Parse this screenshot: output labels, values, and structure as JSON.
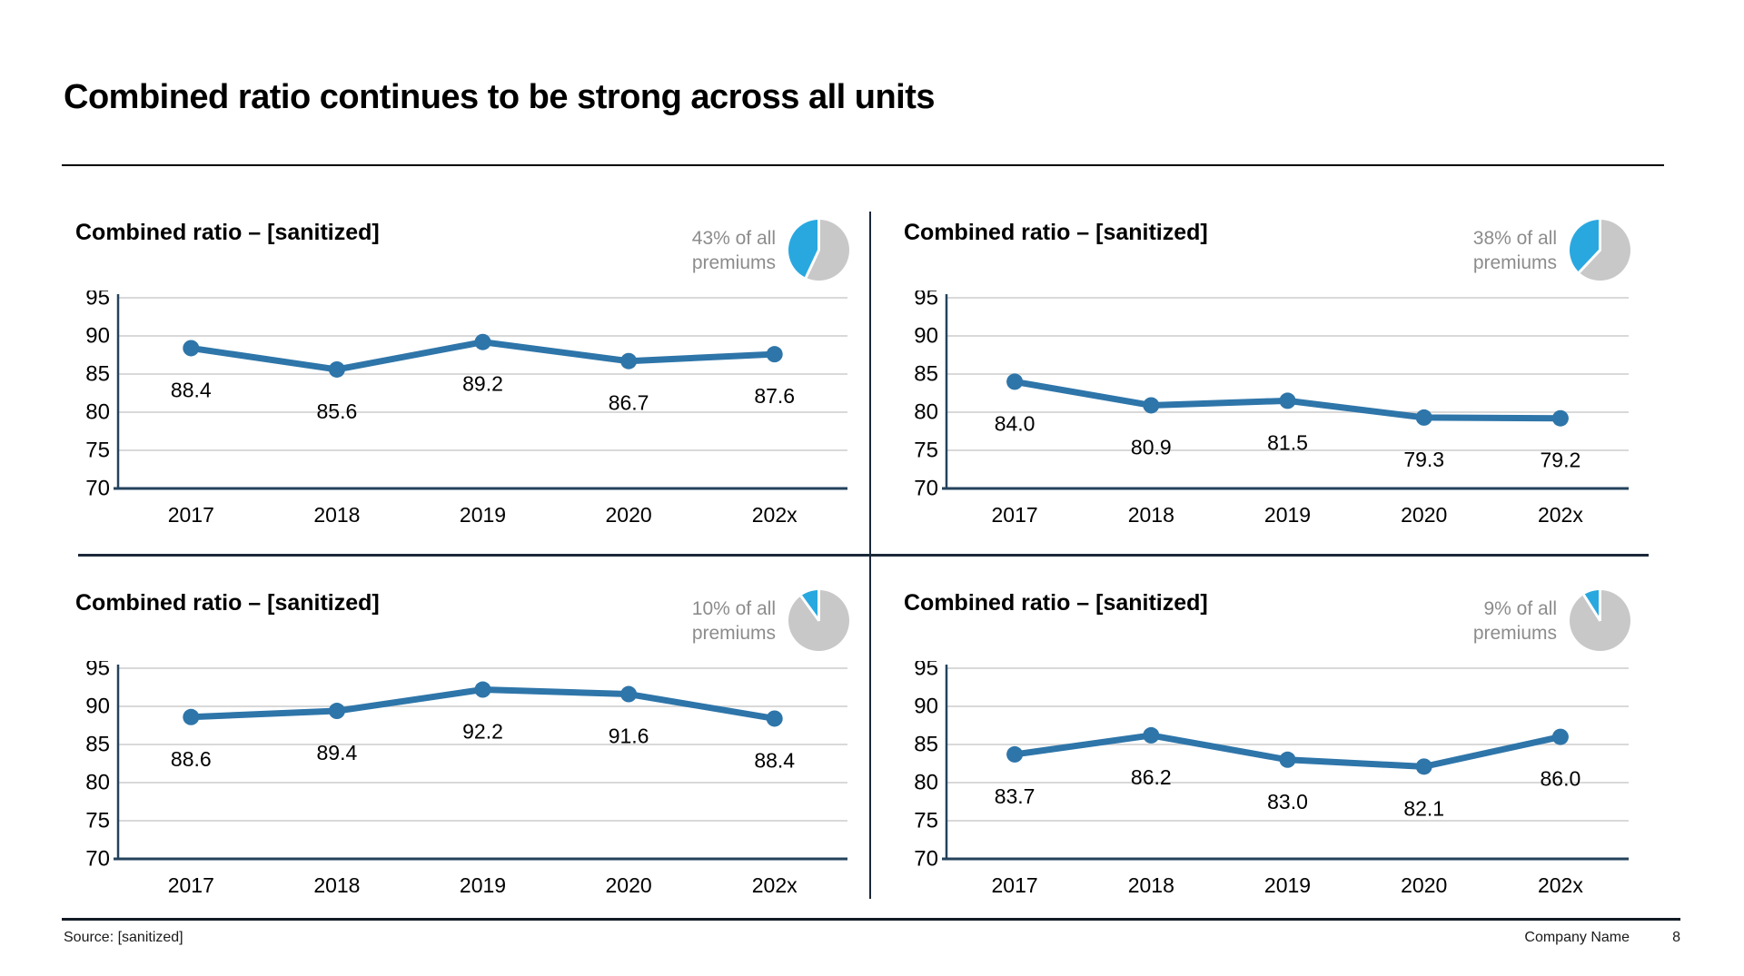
{
  "title": "Combined ratio continues to be strong across all units",
  "footer": {
    "source": "Source: [sanitized]",
    "company": "Company Name",
    "page": "8"
  },
  "colors": {
    "line": "#2E75A9",
    "pie_blue": "#29A8E0",
    "pie_gray": "#C8C8C8",
    "gridline": "#D9D9D9",
    "axis": "#24425C",
    "divider": "#1B2838",
    "caption_gray": "#8C8C8C"
  },
  "chart_data": [
    {
      "type": "line",
      "position": "top-left",
      "title": "Combined ratio – [sanitized]",
      "share_pct": 43,
      "share_caption": {
        "line1": "43% of all",
        "line2": "premiums"
      },
      "categories": [
        "2017",
        "2018",
        "2019",
        "2020",
        "202x"
      ],
      "values": [
        88.4,
        85.6,
        89.2,
        86.7,
        87.6
      ],
      "labels": [
        "88.4",
        "85.6",
        "89.2",
        "86.7",
        "87.6"
      ],
      "ylim": [
        70,
        95
      ],
      "ytick_step": 5,
      "grid": true,
      "legend": "none"
    },
    {
      "type": "line",
      "position": "top-right",
      "title": "Combined ratio – [sanitized]",
      "share_pct": 38,
      "share_caption": {
        "line1": "38% of all",
        "line2": "premiums"
      },
      "categories": [
        "2017",
        "2018",
        "2019",
        "2020",
        "202x"
      ],
      "values": [
        84.0,
        80.9,
        81.5,
        79.3,
        79.2
      ],
      "labels": [
        "84.0",
        "80.9",
        "81.5",
        "79.3",
        "79.2"
      ],
      "ylim": [
        70,
        95
      ],
      "ytick_step": 5,
      "grid": true,
      "legend": "none"
    },
    {
      "type": "line",
      "position": "bottom-left",
      "title": "Combined ratio – [sanitized]",
      "share_pct": 10,
      "share_caption": {
        "line1": "10% of all",
        "line2": "premiums"
      },
      "categories": [
        "2017",
        "2018",
        "2019",
        "2020",
        "202x"
      ],
      "values": [
        88.6,
        89.4,
        92.2,
        91.6,
        88.4
      ],
      "labels": [
        "88.6",
        "89.4",
        "92.2",
        "91.6",
        "88.4"
      ],
      "ylim": [
        70,
        95
      ],
      "ytick_step": 5,
      "grid": true,
      "legend": "none"
    },
    {
      "type": "line",
      "position": "bottom-right",
      "title": "Combined ratio – [sanitized]",
      "share_pct": 9,
      "share_caption": {
        "line1": "9% of all",
        "line2": "premiums"
      },
      "categories": [
        "2017",
        "2018",
        "2019",
        "2020",
        "202x"
      ],
      "values": [
        83.7,
        86.2,
        83.0,
        82.1,
        86.0
      ],
      "labels": [
        "83.7",
        "86.2",
        "83.0",
        "82.1",
        "86.0"
      ],
      "ylim": [
        70,
        95
      ],
      "ytick_step": 5,
      "grid": true,
      "legend": "none"
    }
  ]
}
